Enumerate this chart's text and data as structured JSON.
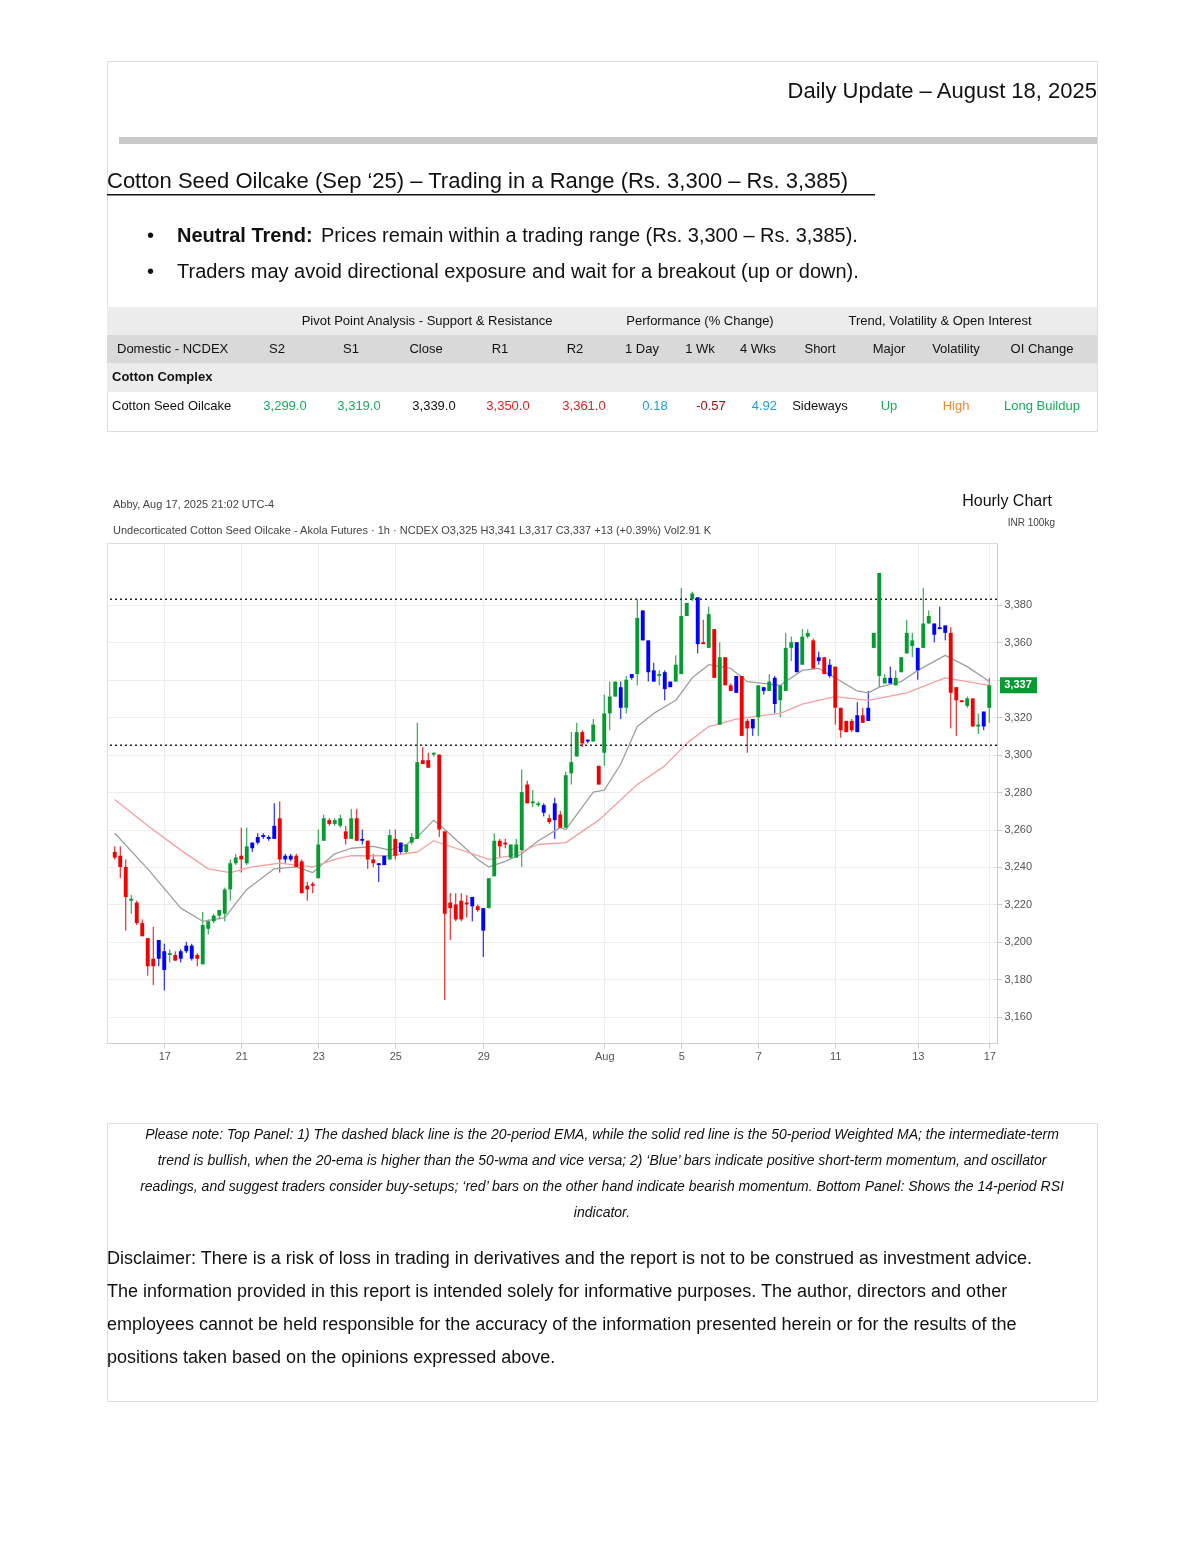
{
  "chart_data": [
    {
      "type": "other",
      "title": "Cotton Seed Oilcake (Sep ‘25) – Trading in a Range (Rs. 3,300 – Rs. 3,385)",
      "subtitle": "Daily Update – August 18, 2025",
      "annotations": [
        "Neutral Trend:",
        "Prices remain within a trading range (Rs. 3,300 – Rs. 3,385).",
        "Traders may avoid directional exposure and wait for a breakout (up or down).",
        "Pivot Point Analysis - Support & Resistance",
        "Performance (% Change)",
        "Trend, Volatility & Open Interest",
        "Domestic - NCDEX",
        "S2",
        "S1",
        "Close",
        "R1",
        "R2",
        "1 Day",
        "1 Wk",
        "4 Wks",
        "Short",
        "Major",
        "Volatility",
        "OI Change",
        "Cotton Complex",
        "Cotton Seed Oilcake",
        "3,299.0",
        "3,319.0",
        "3,339.0",
        "3,350.0",
        "3,361.0",
        "0.18",
        "-0.57",
        "4.92",
        "Sideways",
        "Up",
        "High",
        "Long Buildup",
        "•",
        "•"
      ]
    },
    {
      "type": "candlestick",
      "title": "Hourly Chart",
      "subtitle": "Undecorticated Cotton Seed Oilcake - Akola Futures · 1h · NCDEX  O3,325  H3,341  L3,317  C3,337  +13 (+0.39%)  Vol2.91 K",
      "annotations": [
        "Abby, Aug 17, 2025 21:02 UTC-4",
        {
          "text": "3,337",
          "y": 3337
        }
      ],
      "ylabel": "INR 100kg",
      "categories": [
        null,
        null,
        null,
        null,
        null,
        null,
        null,
        null,
        null,
        "17",
        null,
        null,
        null,
        null,
        null,
        null,
        null,
        null,
        null,
        null,
        null,
        null,
        null,
        "21",
        null,
        null,
        null,
        null,
        null,
        null,
        null,
        null,
        null,
        null,
        null,
        null,
        null,
        "23",
        null,
        null,
        null,
        null,
        null,
        null,
        null,
        null,
        null,
        null,
        null,
        null,
        null,
        "25",
        null,
        null,
        null,
        null,
        null,
        null,
        null,
        null,
        null,
        null,
        null,
        null,
        null,
        null,
        null,
        "29",
        null,
        null,
        null,
        null,
        null,
        null,
        null,
        null,
        null,
        null,
        null,
        null,
        null,
        null,
        null,
        null,
        null,
        null,
        null,
        null,
        null,
        "Aug",
        null,
        null,
        null,
        null,
        null,
        null,
        null,
        null,
        null,
        null,
        null,
        null,
        null,
        "5",
        null,
        null,
        null,
        null,
        null,
        null,
        null,
        null,
        null,
        null,
        null,
        null,
        null,
        "7",
        null,
        null,
        null,
        null,
        null,
        null,
        null,
        null,
        null,
        null,
        null,
        null,
        null,
        "11",
        null,
        null,
        null,
        null,
        null,
        null,
        null,
        null,
        null,
        null,
        null,
        null,
        null,
        null,
        "13",
        null,
        null,
        null,
        null,
        null,
        null,
        null,
        null,
        null,
        null,
        null,
        null,
        "17"
      ],
      "ohlc": [
        [
          3248,
          3251,
          3244,
          3245
        ],
        [
          3246,
          3251,
          3234,
          3240
        ],
        [
          3240,
          3244,
          3206,
          3224
        ],
        [
          3222,
          3225,
          3215,
          3223
        ],
        [
          3221,
          3222,
          3209,
          3210
        ],
        [
          3210,
          3212,
          3203,
          3203
        ],
        [
          3202,
          3202,
          3182,
          3187
        ],
        [
          3191,
          3208,
          3177,
          3187
        ],
        [
          3191,
          3201,
          3187,
          3201
        ],
        [
          3185,
          3199,
          3174,
          3195
        ],
        [
          3193,
          3196,
          3189,
          3194
        ],
        [
          3193,
          3195,
          3190,
          3190
        ],
        [
          3191,
          3196,
          3189,
          3195
        ],
        [
          3195,
          3200,
          3194,
          3198
        ],
        [
          3191,
          3199,
          3190,
          3198
        ],
        [
          3193,
          3194,
          3187,
          3191
        ],
        [
          3188,
          3216,
          3188,
          3209
        ],
        [
          3207,
          3212,
          3204,
          3211
        ],
        [
          3211,
          3215,
          3210,
          3214
        ],
        [
          3214,
          3217,
          3212,
          3217
        ],
        [
          3215,
          3229,
          3211,
          3228
        ],
        [
          3228,
          3244,
          3222,
          3242
        ],
        [
          3242,
          3247,
          3241,
          3245
        ],
        [
          3246,
          3261,
          3237,
          3244
        ],
        [
          3242,
          3261,
          3241,
          3251
        ],
        [
          3250,
          3253,
          3248,
          3253
        ],
        [
          3253,
          3258,
          3252,
          3256
        ],
        [
          3256,
          3258,
          3255,
          3257
        ],
        [
          3255,
          3257,
          3254,
          3256
        ],
        [
          3255,
          3274,
          3255,
          3262
        ],
        [
          3266,
          3275,
          3237,
          3244
        ],
        [
          3244,
          3247,
          3242,
          3246
        ],
        [
          3244,
          3247,
          3243,
          3246
        ],
        [
          3246,
          3247,
          3240,
          3240
        ],
        [
          3243,
          3244,
          3226,
          3226
        ],
        [
          3230,
          3232,
          3222,
          3228
        ],
        [
          3231,
          3232,
          3226,
          3230
        ],
        [
          3234,
          3260,
          3234,
          3252
        ],
        [
          3254,
          3268,
          3254,
          3266
        ],
        [
          3265,
          3266,
          3262,
          3263
        ],
        [
          3263,
          3266,
          3262,
          3265
        ],
        [
          3262,
          3268,
          3261,
          3266
        ],
        [
          3259,
          3262,
          3252,
          3255
        ],
        [
          3255,
          3271,
          3255,
          3266
        ],
        [
          3266,
          3271,
          3254,
          3254
        ],
        [
          3254,
          3260,
          3252,
          3255
        ],
        [
          3254,
          3254,
          3239,
          3244
        ],
        [
          3244,
          3247,
          3240,
          3242
        ],
        [
          3241,
          3242,
          3232,
          3242
        ],
        [
          3241,
          3246,
          3241,
          3246
        ],
        [
          3244,
          3260,
          3244,
          3257
        ],
        [
          3255,
          3260,
          3244,
          3246
        ],
        [
          3248,
          3253,
          3247,
          3253
        ],
        [
          3248,
          3252,
          3247,
          3252
        ],
        [
          3253,
          3258,
          3252,
          3256
        ],
        [
          3255,
          3317,
          3255,
          3296
        ],
        [
          3297,
          3304,
          3295,
          3295
        ],
        [
          3297,
          3301,
          3293,
          3293
        ],
        [
          3300,
          3301,
          3299,
          3301
        ],
        [
          3300,
          3300,
          3256,
          3260
        ],
        [
          3259,
          3259,
          3169,
          3215
        ],
        [
          3221,
          3226,
          3201,
          3218
        ],
        [
          3220,
          3226,
          3211,
          3212
        ],
        [
          3222,
          3226,
          3211,
          3212
        ],
        [
          3221,
          3225,
          3213,
          3220
        ],
        [
          3219,
          3224,
          3211,
          3224
        ],
        [
          3219,
          3220,
          3216,
          3217
        ],
        [
          3206,
          3218,
          3192,
          3218
        ],
        [
          3218,
          3234,
          3218,
          3234
        ],
        [
          3235,
          3258,
          3235,
          3254
        ],
        [
          3254,
          3255,
          3245,
          3251
        ],
        [
          3253,
          3255,
          3250,
          3252
        ],
        [
          3245,
          3252,
          3244,
          3252
        ],
        [
          3245,
          3255,
          3245,
          3252
        ],
        [
          3249,
          3292,
          3240,
          3280
        ],
        [
          3284,
          3286,
          3274,
          3274
        ],
        [
          3274,
          3281,
          3272,
          3275
        ],
        [
          3273,
          3275,
          3272,
          3274
        ],
        [
          3269,
          3274,
          3267,
          3273
        ],
        [
          3266,
          3268,
          3263,
          3264
        ],
        [
          3265,
          3277,
          3255,
          3274
        ],
        [
          3268,
          3270,
          3261,
          3261
        ],
        [
          3261,
          3291,
          3261,
          3289
        ],
        [
          3290,
          3312,
          3284,
          3296
        ],
        [
          3299,
          3317,
          3299,
          3312
        ],
        [
          3312,
          3313,
          3304,
          3306
        ],
        [
          3307,
          3308,
          3306,
          3308
        ],
        [
          3307,
          3319,
          3307,
          3316
        ],
        [
          3294,
          3294,
          3284,
          3284
        ],
        [
          3301,
          3332,
          3294,
          3322
        ],
        [
          3322,
          3339,
          3313,
          3331
        ],
        [
          3331,
          3339,
          3331,
          3339
        ],
        [
          3325,
          3339,
          3319,
          3336
        ],
        [
          3325,
          3342,
          3322,
          3340
        ],
        [
          3341,
          3343,
          3340,
          3343
        ],
        [
          3343,
          3383,
          3337,
          3373
        ],
        [
          3361,
          3377,
          3361,
          3377
        ],
        [
          3344,
          3361,
          3339,
          3361
        ],
        [
          3339,
          3349,
          3339,
          3345
        ],
        [
          3342,
          3345,
          3337,
          3343
        ],
        [
          3335,
          3345,
          3329,
          3344
        ],
        [
          3336,
          3339,
          3336,
          3339
        ],
        [
          3339,
          3353,
          3339,
          3348
        ],
        [
          3343,
          3389,
          3343,
          3374
        ],
        [
          3374,
          3381,
          3374,
          3381
        ],
        [
          3383,
          3387,
          3382,
          3386
        ],
        [
          3359,
          3384,
          3354,
          3384
        ],
        [
          3360,
          3372,
          3359,
          3359
        ],
        [
          3357,
          3379,
          3357,
          3375
        ],
        [
          3367,
          3367,
          3341,
          3341
        ],
        [
          3316,
          3360,
          3316,
          3352
        ],
        [
          3352,
          3352,
          3337,
          3337
        ],
        [
          3337,
          3338,
          3334,
          3334
        ],
        [
          3333,
          3342,
          3333,
          3342
        ],
        [
          3342,
          3342,
          3310,
          3310
        ],
        [
          3318,
          3319,
          3301,
          3314
        ],
        [
          3314,
          3319,
          3310,
          3319
        ],
        [
          3320,
          3337,
          3310,
          3337
        ],
        [
          3334,
          3336,
          3332,
          3336
        ],
        [
          3334,
          3343,
          3334,
          3339
        ],
        [
          3327,
          3342,
          3322,
          3341
        ],
        [
          3329,
          3337,
          3320,
          3337
        ],
        [
          3334,
          3365,
          3334,
          3357
        ],
        [
          3357,
          3363,
          3350,
          3360
        ],
        [
          3344,
          3360,
          3344,
          3360
        ],
        [
          3348,
          3367,
          3348,
          3363
        ],
        [
          3363,
          3367,
          3362,
          3365
        ],
        [
          3361,
          3362,
          3346,
          3346
        ],
        [
          3350,
          3355,
          3348,
          3352
        ],
        [
          3352,
          3352,
          3343,
          3343
        ],
        [
          3342,
          3351,
          3341,
          3348
        ],
        [
          3347,
          3347,
          3316,
          3325
        ],
        [
          3325,
          3325,
          3309,
          3313
        ],
        [
          3318,
          3318,
          3312,
          3312
        ],
        [
          3318,
          3319,
          3312,
          3313
        ],
        [
          3312,
          3328,
          3312,
          3321
        ],
        [
          3321,
          3325,
          3317,
          3317
        ],
        [
          3318,
          3334,
          3318,
          3325
        ],
        [
          3357,
          3365,
          3357,
          3365
        ],
        [
          3342,
          3397,
          3336,
          3397
        ],
        [
          3338,
          3343,
          3338,
          3341
        ],
        [
          3338,
          3347,
          3338,
          3341
        ],
        [
          3337,
          3345,
          3337,
          3341
        ],
        [
          3344,
          3352,
          3344,
          3352
        ],
        [
          3354,
          3372,
          3354,
          3365
        ],
        [
          3358,
          3365,
          3352,
          3361
        ],
        [
          3345,
          3357,
          3340,
          3357
        ],
        [
          3357,
          3389,
          3357,
          3370
        ],
        [
          3370,
          3377,
          3370,
          3374
        ],
        [
          3364,
          3370,
          3360,
          3370
        ],
        [
          3367,
          3379,
          3367,
          3368
        ],
        [
          3365,
          3369,
          3361,
          3369
        ],
        [
          3365,
          3368,
          3314,
          3333
        ],
        [
          3336,
          3336,
          3310,
          3329
        ],
        [
          3329,
          3329,
          3328,
          3328
        ],
        [
          3326,
          3331,
          3325,
          3330
        ],
        [
          3330,
          3330,
          3315,
          3315
        ],
        [
          3315,
          3322,
          3311,
          3316
        ],
        [
          3315,
          3323,
          3313,
          3323
        ],
        [
          3325,
          3341,
          3317,
          3337
        ]
      ],
      "colors": [
        "#f00000",
        "#f00000",
        "#f00000",
        "#089a32",
        "#f00000",
        "#f00000",
        "#f00000",
        "#f00000",
        "#0000ff",
        "#0000ff",
        "#089a32",
        "#f00000",
        "#0000ff",
        "#0000ff",
        "#0000ff",
        "#f00000",
        "#089a32",
        "#089a32",
        "#089a32",
        "#089a32",
        "#089a32",
        "#089a32",
        "#089a32",
        "#f00000",
        "#089a32",
        "#0000ff",
        "#0000ff",
        "#0000ff",
        "#0000ff",
        "#0000ff",
        "#f00000",
        "#0000ff",
        "#0000ff",
        "#f00000",
        "#f00000",
        "#f00000",
        "#f00000",
        "#089a32",
        "#089a32",
        "#f00000",
        "#089a32",
        "#089a32",
        "#f00000",
        "#089a32",
        "#f00000",
        "#0000ff",
        "#f00000",
        "#f00000",
        "#0000ff",
        "#0000ff",
        "#089a32",
        "#f00000",
        "#0000ff",
        "#089a32",
        "#089a32",
        "#089a32",
        "#f00000",
        "#f00000",
        "#089a32",
        "#f00000",
        "#f00000",
        "#f00000",
        "#f00000",
        "#f00000",
        "#f00000",
        "#0000ff",
        "#f00000",
        "#0000ff",
        "#089a32",
        "#089a32",
        "#f00000",
        "#f00000",
        "#089a32",
        "#089a32",
        "#089a32",
        "#f00000",
        "#089a32",
        "#089a32",
        "#0000ff",
        "#f00000",
        "#0000ff",
        "#f00000",
        "#089a32",
        "#089a32",
        "#089a32",
        "#f00000",
        "#0000ff",
        "#089a32",
        "#f00000",
        "#089a32",
        "#089a32",
        "#089a32",
        "#0000ff",
        "#089a32",
        "#0000ff",
        "#089a32",
        "#0000ff",
        "#0000ff",
        "#0000ff",
        "#089a32",
        "#0000ff",
        "#0000ff",
        "#089a32",
        "#089a32",
        "#089a32",
        "#089a32",
        "#0000ff",
        "#f00000",
        "#089a32",
        "#f00000",
        "#089a32",
        "#f00000",
        "#f00000",
        "#0000ff",
        "#f00000",
        "#f00000",
        "#0000ff",
        "#089a32",
        "#0000ff",
        "#089a32",
        "#0000ff",
        "#089a32",
        "#089a32",
        "#089a32",
        "#0000ff",
        "#089a32",
        "#089a32",
        "#f00000",
        "#0000ff",
        "#f00000",
        "#0000ff",
        "#f00000",
        "#f00000",
        "#f00000",
        "#f00000",
        "#0000ff",
        "#f00000",
        "#0000ff",
        "#089a32",
        "#089a32",
        "#089a32",
        "#0000ff",
        "#089a32",
        "#089a32",
        "#089a32",
        "#089a32",
        "#0000ff",
        "#089a32",
        "#089a32",
        "#0000ff",
        "#0000ff",
        "#0000ff",
        "#f00000",
        "#f00000",
        "#f00000",
        "#089a32",
        "#f00000",
        "#089a32",
        "#0000ff",
        "#089a32"
      ],
      "series": [
        {
          "type": "line",
          "color": "#9e9e9e",
          "values": [
            3258,
            null,
            null,
            null,
            null,
            null,
            3239,
            null,
            null,
            null,
            null,
            null,
            3218,
            null,
            null,
            null,
            3211,
            null,
            null,
            null,
            3213,
            null,
            null,
            null,
            3228,
            null,
            null,
            null,
            null,
            3239,
            null,
            null,
            null,
            3240,
            null,
            null,
            3237,
            null,
            null,
            null,
            3247,
            null,
            null,
            3250,
            null,
            null,
            null,
            3251,
            null,
            null,
            3249,
            null,
            null,
            3252,
            null,
            3256,
            null,
            null,
            3265,
            null,
            3260,
            null,
            null,
            3252,
            null,
            null,
            3244,
            null,
            3240,
            null,
            null,
            3243,
            null,
            null,
            3247,
            null,
            null,
            3254,
            null,
            null,
            null,
            3261,
            3260,
            null,
            null,
            null,
            null,
            3280,
            null,
            3281,
            null,
            null,
            3295,
            null,
            null,
            3315,
            null,
            null,
            3322,
            null,
            null,
            null,
            3329,
            null,
            null,
            3341,
            null,
            null,
            3348,
            null,
            null,
            null,
            3346,
            null,
            null,
            3339,
            null,
            null,
            3338,
            null,
            null,
            3337,
            null,
            null,
            null,
            3345,
            null,
            null,
            3346,
            null,
            null,
            3341,
            null,
            null,
            null,
            3334,
            null,
            3333,
            null,
            3336,
            null,
            null,
            null,
            3339,
            null,
            null,
            3345,
            null,
            null,
            null,
            null,
            3353,
            null,
            null,
            null,
            3347,
            null,
            null,
            null,
            3339
          ]
        },
        {
          "type": "line",
          "color": "#f4a0a0",
          "values": [
            3276,
            null,
            null,
            null,
            null,
            null,
            3262,
            null,
            null,
            null,
            null,
            null,
            3249,
            null,
            null,
            null,
            null,
            3239,
            null,
            null,
            null,
            3237,
            null,
            null,
            null,
            3240,
            null,
            null,
            null,
            null,
            3242,
            null,
            null,
            3241,
            null,
            null,
            3240,
            null,
            null,
            null,
            3244,
            null,
            null,
            3246,
            null,
            null,
            null,
            null,
            null,
            null,
            3246,
            null,
            null,
            null,
            null,
            3248,
            null,
            null,
            3254,
            null,
            3252,
            null,
            null,
            null,
            null,
            null,
            3246,
            null,
            3244,
            null,
            null,
            null,
            3246,
            null,
            null,
            null,
            null,
            3252,
            null,
            null,
            null,
            null,
            3253,
            null,
            null,
            null,
            null,
            null,
            3265,
            null,
            null,
            null,
            null,
            null,
            null,
            3284,
            null,
            null,
            null,
            null,
            3294,
            null,
            null,
            null,
            3306,
            null,
            null,
            null,
            3315,
            null,
            null,
            null,
            null,
            3319,
            null,
            null,
            null,
            null,
            3321,
            null,
            null,
            3322,
            null,
            null,
            null,
            3327,
            null,
            null,
            null,
            null,
            null,
            3331,
            null,
            null,
            null,
            null,
            null,
            3329,
            null,
            null,
            null,
            null,
            null,
            null,
            3333,
            null,
            null,
            null,
            null,
            null,
            null,
            3341,
            null,
            null,
            null,
            null,
            null,
            null,
            null,
            3337
          ]
        }
      ],
      "ylim": [
        3146,
        3413
      ],
      "yticks": [
        {
          "value": 3160,
          "label": "3,160"
        },
        {
          "value": 3180,
          "label": "3,180"
        },
        {
          "value": 3200,
          "label": "3,200"
        },
        {
          "value": 3220,
          "label": "3,220"
        },
        {
          "value": 3240,
          "label": "3,240"
        },
        {
          "value": 3260,
          "label": "3,260"
        },
        {
          "value": 3280,
          "label": "3,280"
        },
        {
          "value": 3300,
          "label": "3,300"
        },
        {
          "value": 3320,
          "label": "3,320"
        },
        {
          "value": 3340,
          "label": null
        },
        {
          "value": 3360,
          "label": "3,360"
        },
        {
          "value": 3380,
          "label": "3,380"
        }
      ],
      "grid": true,
      "ref_lines": [
        {
          "axis": "y",
          "value": 3383,
          "color": "#222222",
          "line_style": "dotted"
        },
        {
          "axis": "y",
          "value": 3305,
          "color": "#222222",
          "line_style": "dotted"
        }
      ]
    },
    {
      "type": "other",
      "annotations": [
        "Please note: Top Panel: 1) The dashed black line is the 20-period EMA, while the solid red line is the 50-period Weighted MA; the intermediate-term trend is bullish, when the 20-ema is higher than the 50-wma and vice versa; 2)  ‘Blue’  bars indicate positive short-term momentum, and oscillator readings, and suggest traders consider buy-setups;  ‘red’  bars on the other hand indicate bearish momentum. Bottom Panel: Shows the 14-period RSI indicator.",
        "Disclaimer: There is a risk of loss in trading in derivatives and the report is not to be construed as investment advice. The information provided in this report is intended solely for informative purposes. The author, directors and other employees cannot be held responsible for the accuracy of the information presented herein or for the results of the positions taken based on the opinions expressed above."
      ]
    }
  ]
}
